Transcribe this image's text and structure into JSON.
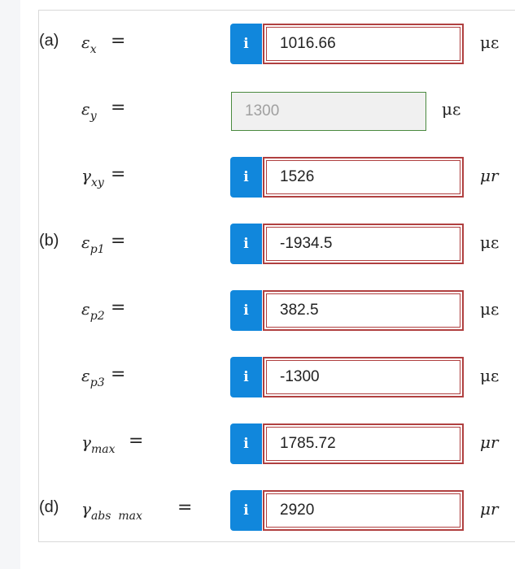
{
  "rows": [
    {
      "part": "(a)",
      "sym": "ε",
      "sub": "x",
      "eq": "=",
      "value": "1016.66",
      "unit": "με",
      "given": false
    },
    {
      "part": "",
      "sym": "ε",
      "sub": "y",
      "eq": "=",
      "value": "1300",
      "unit": "με",
      "given": true
    },
    {
      "part": "",
      "sym": "γ",
      "sub": "xy",
      "eq": "=",
      "value": "1526",
      "unit": "μr",
      "given": false
    },
    {
      "part": "(b)",
      "sym": "ε",
      "sub": "p1",
      "eq": "=",
      "value": "-1934.5",
      "unit": "με",
      "given": false
    },
    {
      "part": "",
      "sym": "ε",
      "sub": "p2",
      "eq": "=",
      "value": "382.5",
      "unit": "με",
      "given": false
    },
    {
      "part": "",
      "sym": "ε",
      "sub": "p3",
      "eq": "=",
      "value": "-1300",
      "unit": "με",
      "given": false
    },
    {
      "part": "",
      "sym": "γ",
      "sub": "max",
      "eq": "=",
      "value": "1785.72",
      "unit": "μr",
      "given": false
    },
    {
      "part": "(d)",
      "sym": "γ",
      "sub": "abs  max",
      "eq": "=",
      "value": "2920",
      "unit": "μr",
      "given": false
    }
  ],
  "info_icon_glyph": "i",
  "colors": {
    "info": "#1187dc",
    "error_border": "#b04040",
    "given_border": "#4a8a3f"
  }
}
